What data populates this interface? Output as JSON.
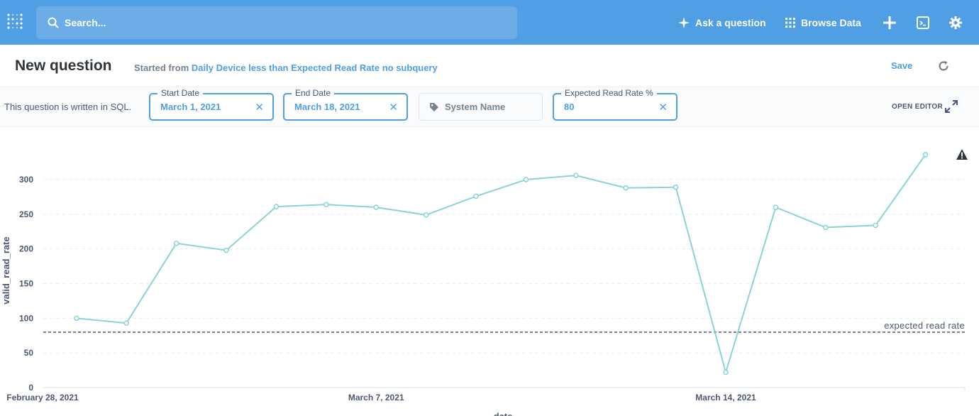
{
  "nav": {
    "search_placeholder": "Search...",
    "ask_label": "Ask a question",
    "browse_label": "Browse Data"
  },
  "header": {
    "title": "New question",
    "started_prefix": "Started from",
    "source_name": "Daily Device less than Expected Read Rate no subquery",
    "save_label": "Save"
  },
  "params": {
    "sql_note": "This question is written in SQL.",
    "start_date": {
      "label": "Start Date",
      "value": "March 1, 2021"
    },
    "end_date": {
      "label": "End Date",
      "value": "March 18, 2021"
    },
    "system_name": {
      "label": "System Name"
    },
    "expected_rate": {
      "label": "Expected Read Rate %",
      "value": "80"
    },
    "open_editor_label": "OPEN EDITOR"
  },
  "colors": {
    "brand": "#509ee3",
    "series": "#88d4d8",
    "goal": "#4c5773"
  },
  "chart_data": {
    "type": "line",
    "xlabel": "date",
    "ylabel": "valid_read_rate",
    "x": [
      "2021-03-01",
      "2021-03-02",
      "2021-03-03",
      "2021-03-04",
      "2021-03-05",
      "2021-03-06",
      "2021-03-07",
      "2021-03-08",
      "2021-03-09",
      "2021-03-10",
      "2021-03-11",
      "2021-03-12",
      "2021-03-13",
      "2021-03-14",
      "2021-03-15",
      "2021-03-16",
      "2021-03-17",
      "2021-03-18"
    ],
    "values": [
      100,
      93,
      208,
      198,
      261,
      264,
      260,
      249,
      276,
      300,
      306,
      288,
      289,
      22,
      260,
      231,
      234,
      336
    ],
    "xlim": [
      "2021-02-28",
      "2021-03-18"
    ],
    "ylim": [
      0,
      345
    ],
    "y_ticks": [
      0,
      50,
      100,
      150,
      200,
      250,
      300
    ],
    "x_ticks": [
      {
        "date": "2021-02-28",
        "label": "February 28, 2021"
      },
      {
        "date": "2021-03-07",
        "label": "March 7, 2021"
      },
      {
        "date": "2021-03-14",
        "label": "March 14, 2021"
      }
    ],
    "goal": {
      "value": 80,
      "label": "expected read rate"
    },
    "grid": true,
    "warning_icon": "warning-icon"
  }
}
